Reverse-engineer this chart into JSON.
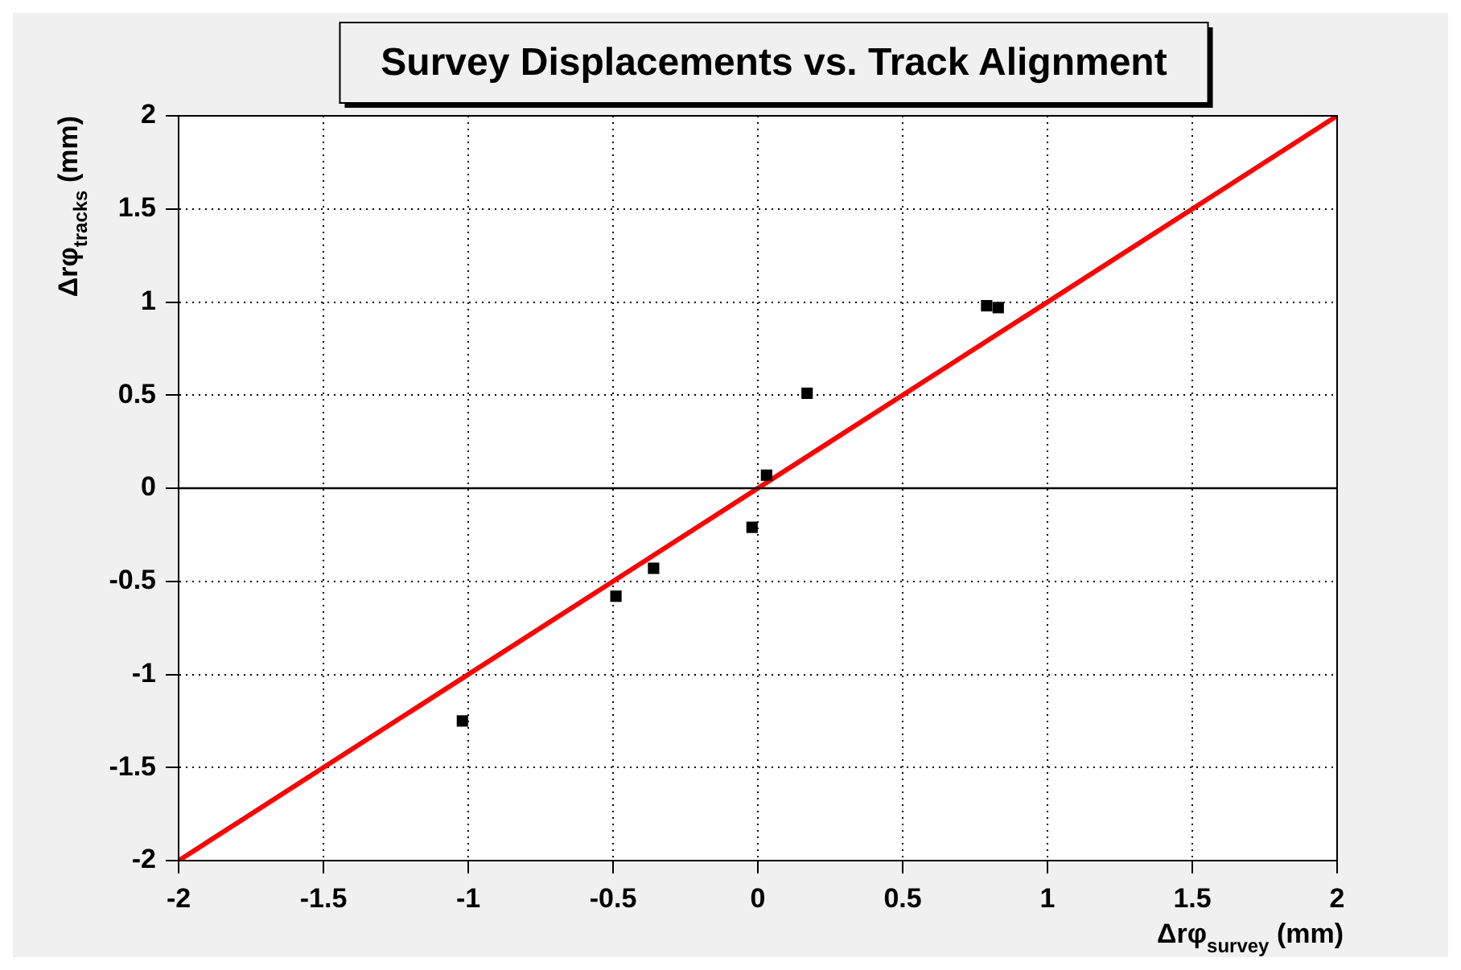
{
  "chart_data": {
    "type": "scatter",
    "title": "Survey Displacements vs. Track Alignment",
    "xlabel": "Δrφ$_{survey}$ (mm)",
    "ylabel": "Δrφ$_{tracks}$ (mm)",
    "xlim": [
      -2,
      2
    ],
    "ylim": [
      -2,
      2
    ],
    "xticks": [
      -2,
      -1.5,
      -1,
      -0.5,
      0,
      0.5,
      1,
      1.5,
      2
    ],
    "yticks": [
      -2,
      -1.5,
      -1,
      -0.5,
      0,
      0.5,
      1,
      1.5,
      2
    ],
    "grid": true,
    "series": [
      {
        "color": "#000000",
        "marker": "square",
        "x": [
          -1.02,
          -0.49,
          -0.36,
          -0.02,
          0.03,
          0.17,
          0.79,
          0.83
        ],
        "values": [
          -1.25,
          -0.58,
          -0.43,
          -0.21,
          0.07,
          0.51,
          0.98,
          0.97
        ]
      },
      {
        "type": "line",
        "color": "#ff0000",
        "line_style": "solid",
        "marker": "none",
        "x": [
          -2,
          2
        ],
        "values": [
          -2,
          2
        ]
      }
    ],
    "ref_lines": [
      {
        "axis": "y",
        "value": 0,
        "color": "#000000"
      }
    ]
  }
}
